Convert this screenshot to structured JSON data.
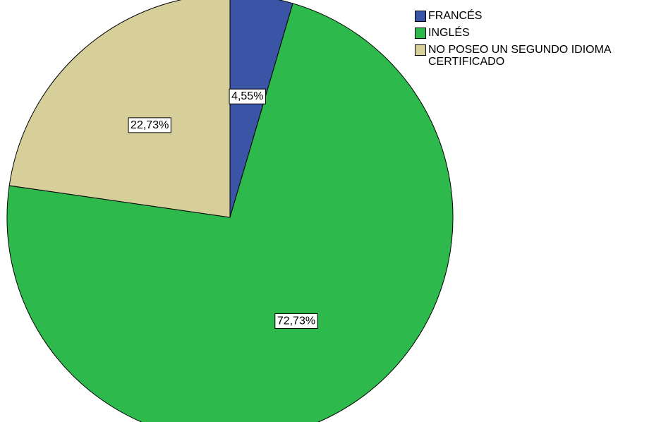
{
  "chart_data": {
    "type": "pie",
    "categories": [
      "FRANCÉS",
      "INGLÉS",
      "NO POSEO UN SEGUNDO IDIOMA CERTIFICADO"
    ],
    "values": [
      4.55,
      72.73,
      22.73
    ],
    "value_labels": [
      "4,55%",
      "72,73%",
      "22,73%"
    ],
    "colors": [
      "#3b55a6",
      "#2eb94c",
      "#d6cf9a"
    ],
    "legend": "top-right"
  }
}
